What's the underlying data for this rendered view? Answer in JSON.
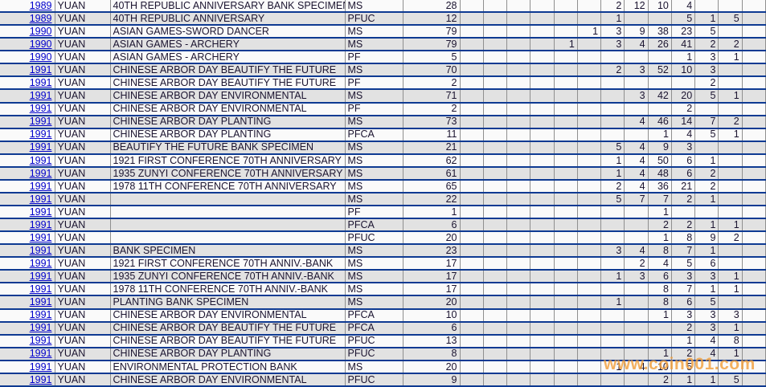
{
  "table": {
    "rows": [
      {
        "year": "1989",
        "denomination": "YUAN",
        "description": "40TH REPUBLIC ANNIVERSARY BANK SPECIMEN",
        "designation": "MS",
        "total": "28",
        "counts": [
          "",
          "",
          "",
          "",
          "",
          "",
          "2",
          "12",
          "10",
          "4",
          "",
          "",
          ""
        ]
      },
      {
        "year": "1989",
        "denomination": "YUAN",
        "description": "40TH REPUBLIC ANNIVERSARY",
        "designation": "PFUC",
        "total": "12",
        "counts": [
          "",
          "",
          "",
          "",
          "",
          "",
          "1",
          "",
          "",
          "5",
          "1",
          "5",
          ""
        ]
      },
      {
        "year": "1990",
        "denomination": "YUAN",
        "description": "ASIAN GAMES-SWORD DANCER",
        "designation": "MS",
        "total": "79",
        "counts": [
          "",
          "",
          "",
          "",
          "",
          "1",
          "3",
          "9",
          "38",
          "23",
          "5",
          "",
          ""
        ]
      },
      {
        "year": "1990",
        "denomination": "YUAN",
        "description": "ASIAN GAMES - ARCHERY",
        "designation": "MS",
        "total": "79",
        "counts": [
          "",
          "",
          "",
          "",
          "1",
          "",
          "3",
          "4",
          "26",
          "41",
          "2",
          "2",
          ""
        ]
      },
      {
        "year": "1990",
        "denomination": "YUAN",
        "description": "ASIAN GAMES - ARCHERY",
        "designation": "PF",
        "total": "5",
        "counts": [
          "",
          "",
          "",
          "",
          "",
          "",
          "",
          "",
          "",
          "1",
          "3",
          "1",
          ""
        ]
      },
      {
        "year": "1991",
        "denomination": "YUAN",
        "description": "CHINESE ARBOR DAY BEAUTIFY THE FUTURE",
        "designation": "MS",
        "total": "70",
        "counts": [
          "",
          "",
          "",
          "",
          "",
          "",
          "2",
          "3",
          "52",
          "10",
          "3",
          "",
          ""
        ]
      },
      {
        "year": "1991",
        "denomination": "YUAN",
        "description": "CHINESE ARBOR DAY BEAUTIFY THE FUTURE",
        "designation": "PF",
        "total": "2",
        "counts": [
          "",
          "",
          "",
          "",
          "",
          "",
          "",
          "",
          "",
          "",
          "2",
          "",
          ""
        ]
      },
      {
        "year": "1991",
        "denomination": "YUAN",
        "description": "CHINESE ARBOR DAY ENVIRONMENTAL",
        "designation": "MS",
        "total": "71",
        "counts": [
          "",
          "",
          "",
          "",
          "",
          "",
          "",
          "3",
          "42",
          "20",
          "5",
          "1",
          ""
        ]
      },
      {
        "year": "1991",
        "denomination": "YUAN",
        "description": "CHINESE ARBOR DAY ENVIRONMENTAL",
        "designation": "PF",
        "total": "2",
        "counts": [
          "",
          "",
          "",
          "",
          "",
          "",
          "",
          "",
          "",
          "2",
          "",
          "",
          ""
        ]
      },
      {
        "year": "1991",
        "denomination": "YUAN",
        "description": "CHINESE ARBOR DAY PLANTING",
        "designation": "MS",
        "total": "73",
        "counts": [
          "",
          "",
          "",
          "",
          "",
          "",
          "",
          "4",
          "46",
          "14",
          "7",
          "2",
          ""
        ]
      },
      {
        "year": "1991",
        "denomination": "YUAN",
        "description": "CHINESE ARBOR DAY PLANTING",
        "designation": "PFCA",
        "total": "11",
        "counts": [
          "",
          "",
          "",
          "",
          "",
          "",
          "",
          "",
          "1",
          "4",
          "5",
          "1",
          ""
        ]
      },
      {
        "year": "1991",
        "denomination": "YUAN",
        "description": "BEAUTIFY THE FUTURE BANK SPECIMEN",
        "designation": "MS",
        "total": "21",
        "counts": [
          "",
          "",
          "",
          "",
          "",
          "",
          "5",
          "4",
          "9",
          "3",
          "",
          "",
          ""
        ]
      },
      {
        "year": "1991",
        "denomination": "YUAN",
        "description": "1921 FIRST CONFERENCE 70TH ANNIVERSARY",
        "designation": "MS",
        "total": "62",
        "counts": [
          "",
          "",
          "",
          "",
          "",
          "",
          "1",
          "4",
          "50",
          "6",
          "1",
          "",
          ""
        ]
      },
      {
        "year": "1991",
        "denomination": "YUAN",
        "description": "1935 ZUNYI CONFERENCE 70TH ANNIVERSARY",
        "designation": "MS",
        "total": "61",
        "counts": [
          "",
          "",
          "",
          "",
          "",
          "",
          "1",
          "4",
          "48",
          "6",
          "2",
          "",
          ""
        ]
      },
      {
        "year": "1991",
        "denomination": "YUAN",
        "description": "1978 11TH CONFERENCE 70TH ANNIVERSARY",
        "designation": "MS",
        "total": "65",
        "counts": [
          "",
          "",
          "",
          "",
          "",
          "",
          "2",
          "4",
          "36",
          "21",
          "2",
          "",
          ""
        ]
      },
      {
        "year": "1991",
        "denomination": "YUAN",
        "description": "",
        "designation": "MS",
        "total": "22",
        "counts": [
          "",
          "",
          "",
          "",
          "",
          "",
          "5",
          "7",
          "7",
          "2",
          "1",
          "",
          ""
        ]
      },
      {
        "year": "1991",
        "denomination": "YUAN",
        "description": "",
        "designation": "PF",
        "total": "1",
        "counts": [
          "",
          "",
          "",
          "",
          "",
          "",
          "",
          "",
          "1",
          "",
          "",
          "",
          ""
        ]
      },
      {
        "year": "1991",
        "denomination": "YUAN",
        "description": "",
        "designation": "PFCA",
        "total": "6",
        "counts": [
          "",
          "",
          "",
          "",
          "",
          "",
          "",
          "",
          "2",
          "2",
          "1",
          "1",
          ""
        ]
      },
      {
        "year": "1991",
        "denomination": "YUAN",
        "description": "",
        "designation": "PFUC",
        "total": "20",
        "counts": [
          "",
          "",
          "",
          "",
          "",
          "",
          "",
          "",
          "1",
          "8",
          "9",
          "2",
          ""
        ]
      },
      {
        "year": "1991",
        "denomination": "YUAN",
        "description": "BANK SPECIMEN",
        "designation": "MS",
        "total": "23",
        "counts": [
          "",
          "",
          "",
          "",
          "",
          "",
          "3",
          "4",
          "8",
          "7",
          "1",
          "",
          ""
        ]
      },
      {
        "year": "1991",
        "denomination": "YUAN",
        "description": "1921 FIRST CONFERENCE 70TH ANNIV.-BANK",
        "designation": "MS",
        "total": "17",
        "counts": [
          "",
          "",
          "",
          "",
          "",
          "",
          "",
          "2",
          "4",
          "5",
          "6",
          "",
          ""
        ]
      },
      {
        "year": "1991",
        "denomination": "YUAN",
        "description": "1935 ZUNYI CONFERENCE 70TH ANNIV.-BANK",
        "designation": "MS",
        "total": "17",
        "counts": [
          "",
          "",
          "",
          "",
          "",
          "",
          "1",
          "3",
          "6",
          "3",
          "3",
          "1",
          ""
        ]
      },
      {
        "year": "1991",
        "denomination": "YUAN",
        "description": "1978 11TH CONFERENCE 70TH ANNIV.-BANK",
        "designation": "MS",
        "total": "17",
        "counts": [
          "",
          "",
          "",
          "",
          "",
          "",
          "",
          "",
          "8",
          "7",
          "1",
          "1",
          ""
        ]
      },
      {
        "year": "1991",
        "denomination": "YUAN",
        "description": "PLANTING BANK SPECIMEN",
        "designation": "MS",
        "total": "20",
        "counts": [
          "",
          "",
          "",
          "",
          "",
          "",
          "1",
          "",
          "8",
          "6",
          "5",
          "",
          ""
        ]
      },
      {
        "year": "1991",
        "denomination": "YUAN",
        "description": "CHINESE ARBOR DAY ENVIRONMENTAL",
        "designation": "PFCA",
        "total": "10",
        "counts": [
          "",
          "",
          "",
          "",
          "",
          "",
          "",
          "",
          "1",
          "3",
          "3",
          "3",
          ""
        ]
      },
      {
        "year": "1991",
        "denomination": "YUAN",
        "description": "CHINESE ARBOR DAY BEAUTIFY THE FUTURE",
        "designation": "PFCA",
        "total": "6",
        "counts": [
          "",
          "",
          "",
          "",
          "",
          "",
          "",
          "",
          "",
          "2",
          "3",
          "1",
          ""
        ]
      },
      {
        "year": "1991",
        "denomination": "YUAN",
        "description": "CHINESE ARBOR DAY BEAUTIFY THE FUTURE",
        "designation": "PFUC",
        "total": "13",
        "counts": [
          "",
          "",
          "",
          "",
          "",
          "",
          "",
          "",
          "",
          "1",
          "4",
          "8",
          ""
        ]
      },
      {
        "year": "1991",
        "denomination": "YUAN",
        "description": "CHINESE ARBOR DAY PLANTING",
        "designation": "PFUC",
        "total": "8",
        "counts": [
          "",
          "",
          "",
          "",
          "",
          "",
          "",
          "",
          "1",
          "2",
          "4",
          "1",
          ""
        ]
      },
      {
        "year": "1991",
        "denomination": "YUAN",
        "description": "ENVIRONMENTAL PROTECTION BANK",
        "designation": "MS",
        "total": "20",
        "counts": [
          "",
          "",
          "",
          "",
          "",
          "",
          "1",
          "4",
          "10",
          "5",
          "",
          "",
          ""
        ]
      },
      {
        "year": "1991",
        "denomination": "YUAN",
        "description": "CHINESE ARBOR DAY ENVIRONMENTAL",
        "designation": "PFUC",
        "total": "9",
        "counts": [
          "",
          "",
          "",
          "",
          "",
          "",
          "",
          "",
          "2",
          "1",
          "1",
          "5",
          ""
        ]
      }
    ]
  },
  "watermark": {
    "text": "www.coin001.com",
    "color": "#F1A03D"
  },
  "colors": {
    "link": "#0000CC",
    "row_separator": "#0E3A92",
    "grid_line": "#8F8F8F",
    "row_base": "#FAFAFA",
    "row_alt": "#E2E2E2",
    "text": "#1B1430"
  }
}
